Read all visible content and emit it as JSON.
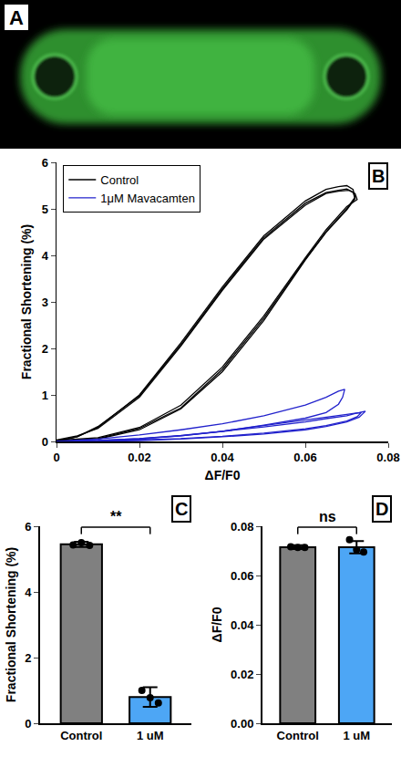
{
  "chart_data": [
    {
      "type": "image",
      "panel": "A"
    },
    {
      "type": "line",
      "panel": "B",
      "xlabel": "ΔF/F0",
      "ylabel": "Fractional Shortening (%)",
      "xlim": [
        0,
        0.08
      ],
      "xticks": [
        0,
        0.02,
        0.04,
        0.06,
        0.08
      ],
      "ylim": [
        0,
        6
      ],
      "yticks": [
        0,
        1,
        2,
        3,
        4,
        5,
        6
      ],
      "legend": "top-left",
      "grid": false,
      "series": [
        {
          "name": "Control",
          "color": "#000000",
          "x": [
            0,
            0.01,
            0.02,
            0.03,
            0.04,
            0.05,
            0.06,
            0.065,
            0.07,
            0.072,
            0.0715,
            0.07,
            0.068,
            0.065,
            0.06,
            0.05,
            0.04,
            0.03,
            0.02,
            0.01,
            0.005,
            0,
            null,
            0,
            0.01,
            0.02,
            0.03,
            0.04,
            0.05,
            0.06,
            0.065,
            0.07,
            0.0725,
            0.072,
            0.0705,
            0.068,
            0.065,
            0.06,
            0.05,
            0.04,
            0.03,
            0.02,
            0.01,
            0.005,
            0,
            null,
            0,
            0.01,
            0.02,
            0.03,
            0.04,
            0.05,
            0.06,
            0.065,
            0.07,
            0.072,
            0.0715,
            0.07,
            0.068,
            0.065,
            0.06,
            0.05,
            0.04,
            0.03,
            0.02,
            0.01,
            0.005,
            0
          ],
          "values": [
            0,
            0.05,
            0.25,
            0.7,
            1.5,
            2.6,
            3.9,
            4.5,
            5.0,
            5.25,
            5.42,
            5.5,
            5.48,
            5.42,
            5.17,
            4.42,
            3.32,
            2.12,
            1.0,
            0.3,
            0.1,
            0,
            null,
            0.02,
            0.08,
            0.3,
            0.78,
            1.6,
            2.7,
            3.95,
            4.55,
            5.05,
            5.2,
            5.33,
            5.4,
            5.38,
            5.33,
            5.08,
            4.35,
            3.25,
            2.05,
            0.95,
            0.28,
            0.12,
            0.03,
            null,
            0,
            0.06,
            0.28,
            0.72,
            1.55,
            2.65,
            3.92,
            4.5,
            4.98,
            5.22,
            5.36,
            5.43,
            5.4,
            5.35,
            5.12,
            4.38,
            3.28,
            2.08,
            0.98,
            0.32,
            0.1,
            0.01
          ]
        },
        {
          "name": "1μM Mavacamten",
          "color": "#2222cc",
          "x": [
            0,
            0.01,
            0.02,
            0.03,
            0.04,
            0.05,
            0.06,
            0.065,
            0.068,
            0.069,
            0.0695,
            0.068,
            0.065,
            0.06,
            0.05,
            0.04,
            0.03,
            0.02,
            0.01,
            0,
            null,
            0,
            0.01,
            0.02,
            0.03,
            0.04,
            0.05,
            0.06,
            0.065,
            0.07,
            0.073,
            0.0745,
            0.073,
            0.07,
            0.065,
            0.06,
            0.05,
            0.04,
            0.03,
            0.02,
            0.01,
            0,
            null,
            0,
            0.01,
            0.02,
            0.03,
            0.04,
            0.05,
            0.06,
            0.065,
            0.07,
            0.0725,
            0.0735,
            0.072,
            0.07,
            0.065,
            0.06,
            0.05,
            0.04,
            0.03,
            0.02,
            0.01,
            0
          ],
          "values": [
            0,
            0.02,
            0.06,
            0.12,
            0.22,
            0.35,
            0.5,
            0.62,
            0.8,
            0.95,
            1.12,
            1.08,
            0.95,
            0.78,
            0.55,
            0.38,
            0.25,
            0.14,
            0.05,
            0,
            null,
            0,
            0.0,
            0.02,
            0.05,
            0.1,
            0.16,
            0.25,
            0.32,
            0.42,
            0.52,
            0.65,
            0.62,
            0.58,
            0.52,
            0.45,
            0.33,
            0.22,
            0.13,
            0.06,
            0.02,
            0,
            null,
            0,
            0.01,
            0.03,
            0.06,
            0.11,
            0.18,
            0.27,
            0.34,
            0.44,
            0.53,
            0.62,
            0.6,
            0.55,
            0.49,
            0.42,
            0.31,
            0.21,
            0.12,
            0.05,
            0.01,
            0
          ]
        }
      ]
    },
    {
      "type": "bar",
      "panel": "C",
      "ylabel": "Fractional Shortening (%)",
      "categories": [
        "Control",
        "1 uM"
      ],
      "values": [
        5.45,
        0.8
      ],
      "errors": [
        0.08,
        0.3
      ],
      "points": [
        [
          5.43,
          5.5,
          5.42
        ],
        [
          1.0,
          0.78,
          0.62
        ]
      ],
      "colors": [
        "#808080",
        "#4da6f5"
      ],
      "ylim": [
        0,
        6
      ],
      "yticks": [
        0,
        2,
        4,
        6
      ],
      "annotations": [
        "**"
      ]
    },
    {
      "type": "bar",
      "panel": "D",
      "ylabel": "ΔF/F0",
      "categories": [
        "Control",
        "1 uM"
      ],
      "values": [
        0.0715,
        0.0715
      ],
      "errors": [
        0.0008,
        0.0025
      ],
      "points": [
        [
          0.0717,
          0.0714,
          0.0714
        ],
        [
          0.0745,
          0.0705,
          0.0695
        ]
      ],
      "colors": [
        "#808080",
        "#4da6f5"
      ],
      "ylim": [
        0,
        0.08
      ],
      "yticks": [
        {
          "value": 0,
          "label": "0.00"
        },
        {
          "value": 0.02,
          "label": "0.02"
        },
        {
          "value": 0.04,
          "label": "0.04"
        },
        {
          "value": 0.06,
          "label": "0.06"
        },
        {
          "value": 0.08,
          "label": "0.08"
        }
      ],
      "annotations": [
        "ns"
      ]
    }
  ]
}
